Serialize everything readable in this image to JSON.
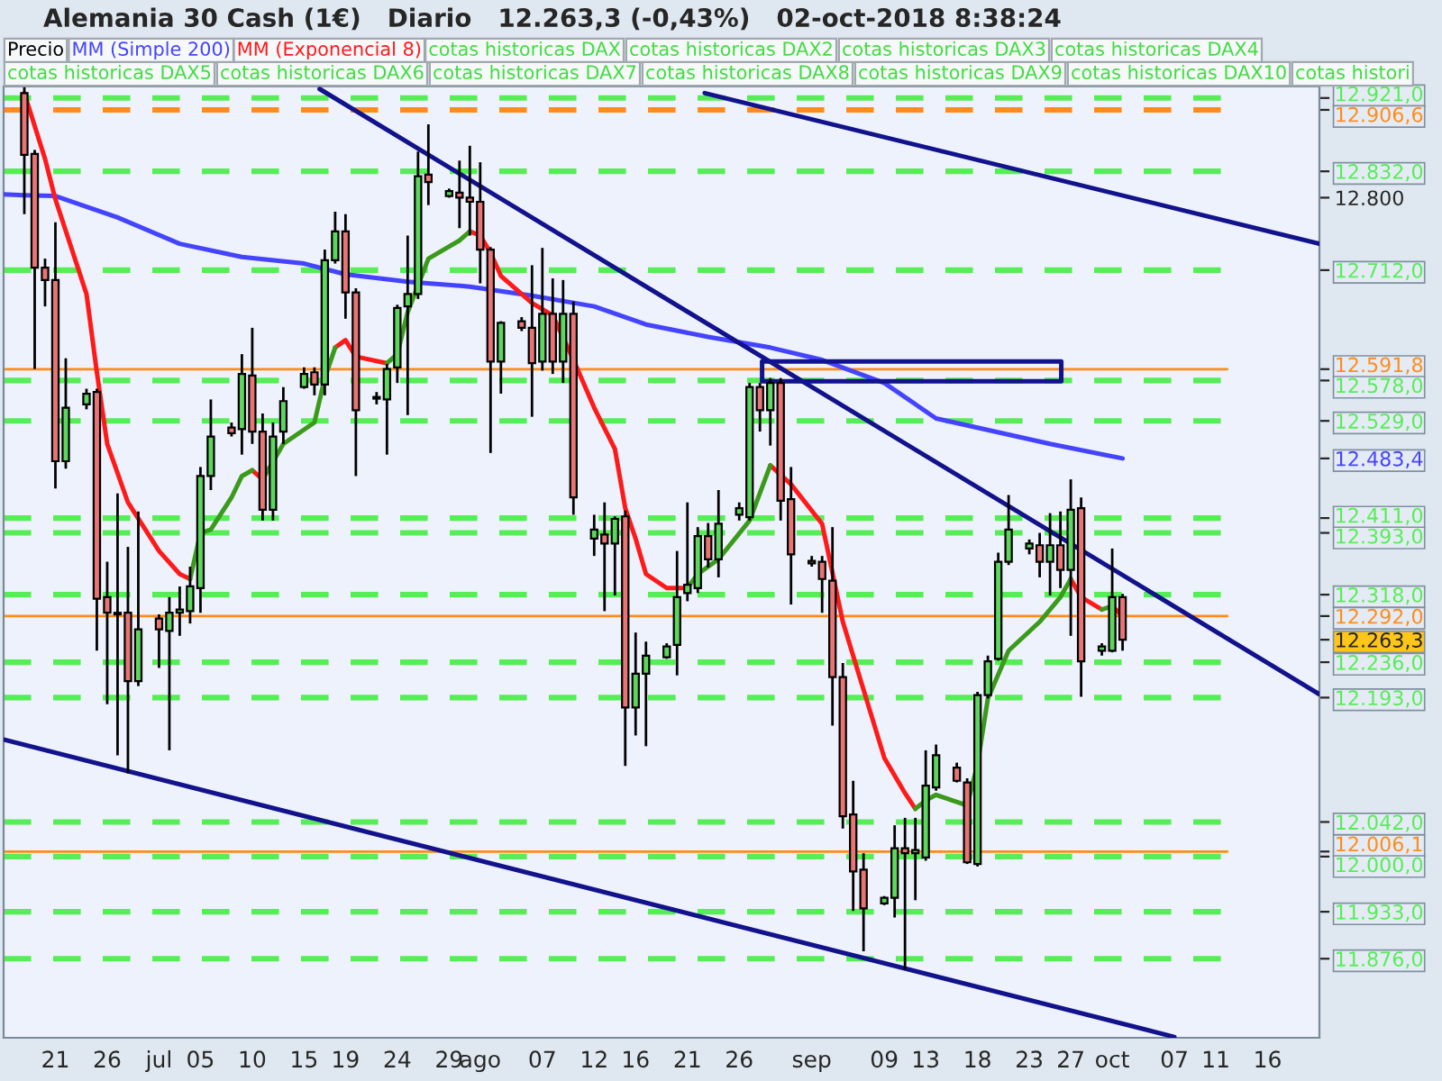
{
  "chart_data": {
    "type": "candlestick",
    "title": "Alemania 30 Cash (1€)   Diario   12.263,3 (-0,43%)   02-oct-2018 8:38:24",
    "xlim": [
      "2018-06-16",
      "2018-10-21"
    ],
    "ylim": [
      11780,
      12935
    ],
    "xticks": [
      {
        "value": "2018-06-21",
        "label": "21"
      },
      {
        "value": "2018-06-26",
        "label": "26"
      },
      {
        "value": "2018-07-01",
        "label": "jul"
      },
      {
        "value": "2018-07-05",
        "label": "05"
      },
      {
        "value": "2018-07-10",
        "label": "10"
      },
      {
        "value": "2018-07-15",
        "label": "15"
      },
      {
        "value": "2018-07-19",
        "label": "19"
      },
      {
        "value": "2018-07-24",
        "label": "24"
      },
      {
        "value": "2018-07-29",
        "label": "29"
      },
      {
        "value": "2018-08-01",
        "label": "ago"
      },
      {
        "value": "2018-08-07",
        "label": "07"
      },
      {
        "value": "2018-08-12",
        "label": "12"
      },
      {
        "value": "2018-08-16",
        "label": "16"
      },
      {
        "value": "2018-08-21",
        "label": "21"
      },
      {
        "value": "2018-08-26",
        "label": "26"
      },
      {
        "value": "2018-09-02",
        "label": "sep"
      },
      {
        "value": "2018-09-09",
        "label": "09"
      },
      {
        "value": "2018-09-13",
        "label": "13"
      },
      {
        "value": "2018-09-18",
        "label": "18"
      },
      {
        "value": "2018-09-23",
        "label": "23"
      },
      {
        "value": "2018-09-27",
        "label": "27"
      },
      {
        "value": "2018-10-01",
        "label": "oct"
      },
      {
        "value": "2018-10-07",
        "label": "07"
      },
      {
        "value": "2018-10-11",
        "label": "11"
      },
      {
        "value": "2018-10-16",
        "label": "16"
      }
    ],
    "yticks": [
      {
        "value": 12921,
        "label": "12.921,0"
      },
      {
        "value": 12906.6,
        "label": "12.906,6"
      },
      {
        "value": 12832,
        "label": "12.832,0"
      },
      {
        "value": 12800,
        "label": "12.800"
      },
      {
        "value": 12712,
        "label": "12.712,0"
      },
      {
        "value": 12591.8,
        "label": "12.591,8"
      },
      {
        "value": 12578,
        "label": "12.578,0"
      },
      {
        "value": 12529,
        "label": "12.529,0"
      },
      {
        "value": 12483.4,
        "label": "12.483,4"
      },
      {
        "value": 12411,
        "label": "12.411,0"
      },
      {
        "value": 12393,
        "label": "12.393,0"
      },
      {
        "value": 12318,
        "label": "12.318,0"
      },
      {
        "value": 12292,
        "label": "12.292,0"
      },
      {
        "value": 12263.3,
        "label": "12.263,3"
      },
      {
        "value": 12236,
        "label": "12.236,0"
      },
      {
        "value": 12193,
        "label": "12.193,0"
      },
      {
        "value": 12042,
        "label": "12.042,0"
      },
      {
        "value": 12006.1,
        "label": "12.006,1"
      },
      {
        "value": 12000,
        "label": "12.000,0"
      },
      {
        "value": 11933,
        "label": "11.933,0"
      },
      {
        "value": 11876,
        "label": "11.876,0"
      }
    ],
    "legend": "top left",
    "annotations": [
      "cotas historicas DAX",
      "cotas historicas DAX2",
      "cotas historicas DAX3",
      "cotas historicas DAX4",
      "cotas historicas DAX5",
      "cotas historicas DAX6",
      "cotas historicas DAX7",
      "cotas historicas DAX8",
      "cotas historicas DAX9",
      "cotas historicas DAX10",
      "cotas histori"
    ],
    "ref_lines": [
      {
        "axis": "y",
        "value": 12921,
        "color": "#55ee55",
        "line_style": "dashed"
      },
      {
        "axis": "y",
        "value": 12906.6,
        "color": "#ff8c1a",
        "line_style": "dashed"
      },
      {
        "axis": "y",
        "value": 12832,
        "color": "#55ee55",
        "line_style": "dashed"
      },
      {
        "axis": "y",
        "value": 12712,
        "color": "#55ee55",
        "line_style": "dashed"
      },
      {
        "axis": "y",
        "value": 12591.8,
        "color": "#ff8c1a",
        "line_style": "solid"
      },
      {
        "axis": "y",
        "value": 12578,
        "color": "#55ee55",
        "line_style": "dashed"
      },
      {
        "axis": "y",
        "value": 12529,
        "color": "#55ee55",
        "line_style": "dashed"
      },
      {
        "axis": "y",
        "value": 12411,
        "color": "#55ee55",
        "line_style": "dashed"
      },
      {
        "axis": "y",
        "value": 12393,
        "color": "#55ee55",
        "line_style": "dashed"
      },
      {
        "axis": "y",
        "value": 12318,
        "color": "#55ee55",
        "line_style": "dashed"
      },
      {
        "axis": "y",
        "value": 12292,
        "color": "#ff8c1a",
        "line_style": "solid"
      },
      {
        "axis": "y",
        "value": 12236,
        "color": "#55ee55",
        "line_style": "dashed"
      },
      {
        "axis": "y",
        "value": 12193,
        "color": "#55ee55",
        "line_style": "dashed"
      },
      {
        "axis": "y",
        "value": 12042,
        "color": "#55ee55",
        "line_style": "dashed"
      },
      {
        "axis": "y",
        "value": 12006.1,
        "color": "#ff8c1a",
        "line_style": "solid"
      },
      {
        "axis": "y",
        "value": 12000,
        "color": "#55ee55",
        "line_style": "dashed"
      },
      {
        "axis": "y",
        "value": 11933,
        "color": "#55ee55",
        "line_style": "dashed"
      },
      {
        "axis": "y",
        "value": 11876,
        "color": "#55ee55",
        "line_style": "dashed"
      }
    ],
    "series": [
      {
        "type": "candlestick",
        "name": "Precio",
        "x": [
          "2018-06-18",
          "2018-06-19",
          "2018-06-20",
          "2018-06-21",
          "2018-06-22",
          "2018-06-24",
          "2018-06-25",
          "2018-06-26",
          "2018-06-27",
          "2018-06-28",
          "2018-06-29",
          "2018-07-01",
          "2018-07-02",
          "2018-07-03",
          "2018-07-04",
          "2018-07-05",
          "2018-07-06",
          "2018-07-08",
          "2018-07-09",
          "2018-07-10",
          "2018-07-11",
          "2018-07-12",
          "2018-07-13",
          "2018-07-15",
          "2018-07-16",
          "2018-07-17",
          "2018-07-18",
          "2018-07-19",
          "2018-07-20",
          "2018-07-22",
          "2018-07-23",
          "2018-07-24",
          "2018-07-25",
          "2018-07-26",
          "2018-07-27",
          "2018-07-29",
          "2018-07-30",
          "2018-07-31",
          "2018-08-01",
          "2018-08-02",
          "2018-08-03",
          "2018-08-05",
          "2018-08-06",
          "2018-08-07",
          "2018-08-08",
          "2018-08-09",
          "2018-08-10",
          "2018-08-12",
          "2018-08-13",
          "2018-08-14",
          "2018-08-15",
          "2018-08-16",
          "2018-08-17",
          "2018-08-19",
          "2018-08-20",
          "2018-08-21",
          "2018-08-22",
          "2018-08-23",
          "2018-08-24",
          "2018-08-26",
          "2018-08-27",
          "2018-08-28",
          "2018-08-29",
          "2018-08-30",
          "2018-08-31",
          "2018-09-02",
          "2018-09-03",
          "2018-09-04",
          "2018-09-05",
          "2018-09-06",
          "2018-09-07",
          "2018-09-09",
          "2018-09-10",
          "2018-09-11",
          "2018-09-12",
          "2018-09-13",
          "2018-09-14",
          "2018-09-16",
          "2018-09-17",
          "2018-09-18",
          "2018-09-19",
          "2018-09-20",
          "2018-09-21",
          "2018-09-23",
          "2018-09-24",
          "2018-09-25",
          "2018-09-26",
          "2018-09-27",
          "2018-09-28",
          "2018-09-30",
          "2018-10-01",
          "2018-10-02"
        ],
        "ohlc": [
          [
            12927,
            12934,
            12780,
            12852
          ],
          [
            12853,
            12858,
            12592,
            12715
          ],
          [
            12715,
            12726,
            12668,
            12700
          ],
          [
            12700,
            12770,
            12447,
            12480
          ],
          [
            12480,
            12605,
            12471,
            12545
          ],
          [
            12549,
            12568,
            12543,
            12562
          ],
          [
            12564,
            12568,
            12250,
            12313
          ],
          [
            12315,
            12358,
            12185,
            12296
          ],
          [
            12296,
            12441,
            12123,
            12294
          ],
          [
            12296,
            12376,
            12101,
            12213
          ],
          [
            12213,
            12419,
            12207,
            12276
          ],
          [
            12289,
            12294,
            12229,
            12276
          ],
          [
            12274,
            12315,
            12129,
            12296
          ],
          [
            12296,
            12328,
            12268,
            12300
          ],
          [
            12298,
            12352,
            12283,
            12328
          ],
          [
            12326,
            12473,
            12296,
            12462
          ],
          [
            12462,
            12555,
            12445,
            12510
          ],
          [
            12521,
            12527,
            12510,
            12514
          ],
          [
            12519,
            12610,
            12488,
            12586
          ],
          [
            12584,
            12642,
            12501,
            12516
          ],
          [
            12516,
            12538,
            12408,
            12421
          ],
          [
            12421,
            12527,
            12408,
            12510
          ],
          [
            12516,
            12570,
            12501,
            12553
          ],
          [
            12570,
            12594,
            12568,
            12586
          ],
          [
            12588,
            12594,
            12560,
            12573
          ],
          [
            12573,
            12737,
            12560,
            12724
          ],
          [
            12724,
            12783,
            12720,
            12759
          ],
          [
            12759,
            12780,
            12653,
            12685
          ],
          [
            12685,
            12690,
            12462,
            12542
          ],
          [
            12558,
            12564,
            12549,
            12556
          ],
          [
            12555,
            12598,
            12488,
            12592
          ],
          [
            12594,
            12670,
            12575,
            12666
          ],
          [
            12668,
            12754,
            12536,
            12683
          ],
          [
            12683,
            12856,
            12677,
            12826
          ],
          [
            12828,
            12889,
            12791,
            12819
          ],
          [
            12802,
            12811,
            12800,
            12808
          ],
          [
            12806,
            12845,
            12763,
            12800
          ],
          [
            12800,
            12863,
            12754,
            12795
          ],
          [
            12795,
            12843,
            12696,
            12737
          ],
          [
            12737,
            12740,
            12490,
            12601
          ],
          [
            12601,
            12650,
            12562,
            12648
          ],
          [
            12650,
            12655,
            12638,
            12642
          ],
          [
            12642,
            12718,
            12534,
            12599
          ],
          [
            12601,
            12739,
            12590,
            12659
          ],
          [
            12659,
            12702,
            12586,
            12601
          ],
          [
            12601,
            12700,
            12575,
            12659
          ],
          [
            12659,
            12674,
            12415,
            12436
          ],
          [
            12386,
            12415,
            12365,
            12397
          ],
          [
            12391,
            12430,
            12298,
            12380
          ],
          [
            12380,
            12413,
            12317,
            12410
          ],
          [
            12413,
            12420,
            12110,
            12181
          ],
          [
            12181,
            12272,
            12147,
            12222
          ],
          [
            12222,
            12261,
            12134,
            12244
          ],
          [
            12242,
            12259,
            12240,
            12255
          ],
          [
            12257,
            12371,
            12220,
            12315
          ],
          [
            12320,
            12430,
            12310,
            12330
          ],
          [
            12326,
            12400,
            12320,
            12389
          ],
          [
            12389,
            12405,
            12351,
            12361
          ],
          [
            12361,
            12445,
            12339,
            12404
          ],
          [
            12415,
            12430,
            12408,
            12423
          ],
          [
            12412,
            12575,
            12408,
            12570
          ],
          [
            12570,
            12575,
            12516,
            12542
          ],
          [
            12542,
            12581,
            12499,
            12575
          ],
          [
            12575,
            12581,
            12408,
            12432
          ],
          [
            12434,
            12473,
            12306,
            12367
          ],
          [
            12359,
            12365,
            12352,
            12356
          ],
          [
            12358,
            12365,
            12296,
            12337
          ],
          [
            12335,
            12400,
            12159,
            12218
          ],
          [
            12218,
            12235,
            12034,
            12049
          ],
          [
            12051,
            12092,
            11934,
            11982
          ],
          [
            11984,
            12004,
            11885,
            11937
          ],
          [
            11943,
            11952,
            11941,
            11950
          ],
          [
            11950,
            12038,
            11926,
            12010
          ],
          [
            12010,
            12047,
            11863,
            12004
          ],
          [
            12004,
            12047,
            11947,
            12008
          ],
          [
            11999,
            12129,
            11995,
            12086
          ],
          [
            12084,
            12136,
            12080,
            12123
          ],
          [
            12108,
            12114,
            12090,
            12092
          ],
          [
            12090,
            12095,
            11991,
            11993
          ],
          [
            11991,
            12200,
            11988,
            12196
          ],
          [
            12196,
            12244,
            12192,
            12237
          ],
          [
            12240,
            12369,
            12238,
            12358
          ],
          [
            12358,
            12439,
            12354,
            12397
          ],
          [
            12374,
            12385,
            12367,
            12380
          ],
          [
            12378,
            12393,
            12339,
            12358
          ],
          [
            12358,
            12417,
            12317,
            12378
          ],
          [
            12378,
            12419,
            12326,
            12348
          ],
          [
            12348,
            12458,
            12268,
            12421
          ],
          [
            12423,
            12436,
            12194,
            12237
          ],
          [
            12250,
            12259,
            12244,
            12255
          ],
          [
            12250,
            12374,
            12248,
            12315
          ],
          [
            12315,
            12319,
            12250,
            12263.3
          ]
        ]
      },
      {
        "type": "line",
        "name": "MM (Simple 200)",
        "color": "#4444ff",
        "x": [
          "2018-06-16",
          "2018-06-18",
          "2018-06-21",
          "2018-06-27",
          "2018-07-03",
          "2018-07-09",
          "2018-07-15",
          "2018-07-19",
          "2018-07-25",
          "2018-07-31",
          "2018-08-06",
          "2018-08-12",
          "2018-08-17",
          "2018-08-23",
          "2018-08-29",
          "2018-09-03",
          "2018-09-09",
          "2018-09-14",
          "2018-09-25",
          "2018-10-02"
        ],
        "values": [
          12804,
          12803,
          12802,
          12776,
          12744,
          12728,
          12720,
          12707,
          12698,
          12692,
          12681,
          12668,
          12646,
          12631,
          12618,
          12603,
          12575,
          12532,
          12501,
          12483.4
        ]
      },
      {
        "type": "line",
        "name": "MM (Exponencial 8)",
        "color": "#ff1a1a",
        "x": [
          "2018-06-18",
          "2018-06-20",
          "2018-06-21",
          "2018-06-24",
          "2018-06-25",
          "2018-06-26",
          "2018-06-28",
          "2018-07-01",
          "2018-07-03",
          "2018-07-04",
          "2018-07-06",
          "2018-07-10",
          "2018-07-11",
          "2018-07-13",
          "2018-07-18",
          "2018-07-19",
          "2018-07-20",
          "2018-07-23",
          "2018-07-26",
          "2018-07-31",
          "2018-08-01",
          "2018-08-02",
          "2018-08-03",
          "2018-08-06",
          "2018-08-08",
          "2018-08-10",
          "2018-08-12",
          "2018-08-14",
          "2018-08-15",
          "2018-08-16",
          "2018-08-17",
          "2018-08-19",
          "2018-08-21",
          "2018-08-24",
          "2018-08-29",
          "2018-08-31",
          "2018-09-03",
          "2018-09-05",
          "2018-09-09",
          "2018-09-11",
          "2018-09-12",
          "2018-09-21",
          "2018-09-27",
          "2018-09-28",
          "2018-09-30",
          "2018-09-30T12:00",
          "2018-10-01",
          "2018-10-02"
        ],
        "values": [
          12927,
          12847,
          12798,
          12683,
          12588,
          12501,
          12430,
          12371,
          12343,
          12337,
          null,
          12469,
          12458,
          null,
          12618,
          12627,
          12607,
          12599,
          null,
          12759,
          12754,
          12733,
          12705,
          12672,
          12657,
          12603,
          12545,
          12495,
          12423,
          12386,
          12343,
          12326,
          12326,
          null,
          12475,
          12452,
          12404,
          12285,
          12120,
          12077,
          12058,
          null,
          12337,
          12315,
          12300,
          null,
          12304,
          12292
        ]
      },
      {
        "type": "line",
        "color": "#3a9a1a",
        "x": [
          "2018-07-04",
          "2018-07-05",
          "2018-07-06",
          "2018-07-08",
          "2018-07-09",
          "2018-07-10",
          "2018-07-10T12:00",
          "2018-07-11",
          "2018-07-13",
          "2018-07-16",
          "2018-07-17",
          "2018-07-18",
          "2018-07-20",
          "2018-07-23",
          "2018-07-24",
          "2018-07-25",
          "2018-07-27",
          "2018-07-30",
          "2018-07-31",
          "2018-08-09",
          "2018-08-21",
          "2018-08-22",
          "2018-08-24",
          "2018-08-27",
          "2018-08-29",
          "2018-09-05",
          "2018-09-12",
          "2018-09-13",
          "2018-09-14",
          "2018-09-17",
          "2018-09-18",
          "2018-09-19",
          "2018-09-21",
          "2018-09-24",
          "2018-09-26",
          "2018-09-27",
          "2018-09-28",
          "2018-09-30",
          "2018-10-01"
        ],
        "values": [
          12337,
          12393,
          12397,
          12436,
          12462,
          12469,
          null,
          12458,
          12501,
          12527,
          12581,
          12618,
          null,
          12599,
          12610,
          12661,
          12726,
          12748,
          12759,
          null,
          12326,
          12343,
          12361,
          12408,
          12475,
          null,
          12058,
          12068,
          12075,
          12062,
          12112,
          12192,
          12250,
          12285,
          12315,
          12337,
          null,
          12300,
          12304
        ]
      },
      {
        "type": "line",
        "color": "#12128c",
        "x": [
          "2018-07-16T12:00",
          "2018-10-21"
        ],
        "values": [
          12932,
          12197
        ]
      },
      {
        "type": "line",
        "color": "#12128c",
        "x": [
          "2018-08-22T16:00",
          "2018-10-21"
        ],
        "values": [
          12927,
          12744
        ]
      },
      {
        "type": "line",
        "color": "#12128c",
        "x": [
          "2018-06-16",
          "2018-10-07"
        ],
        "values": [
          12142,
          11781
        ]
      },
      {
        "type": "line",
        "color": "#12128c",
        "x": [
          "2018-08-28T05:00",
          "2018-09-26T02:00"
        ],
        "values": [
          12601,
          12601
        ]
      },
      {
        "type": "line",
        "color": "#12128c",
        "x": [
          "2018-08-28T05:00",
          "2018-09-26T02:00"
        ],
        "values": [
          12577,
          12577
        ]
      }
    ]
  }
}
